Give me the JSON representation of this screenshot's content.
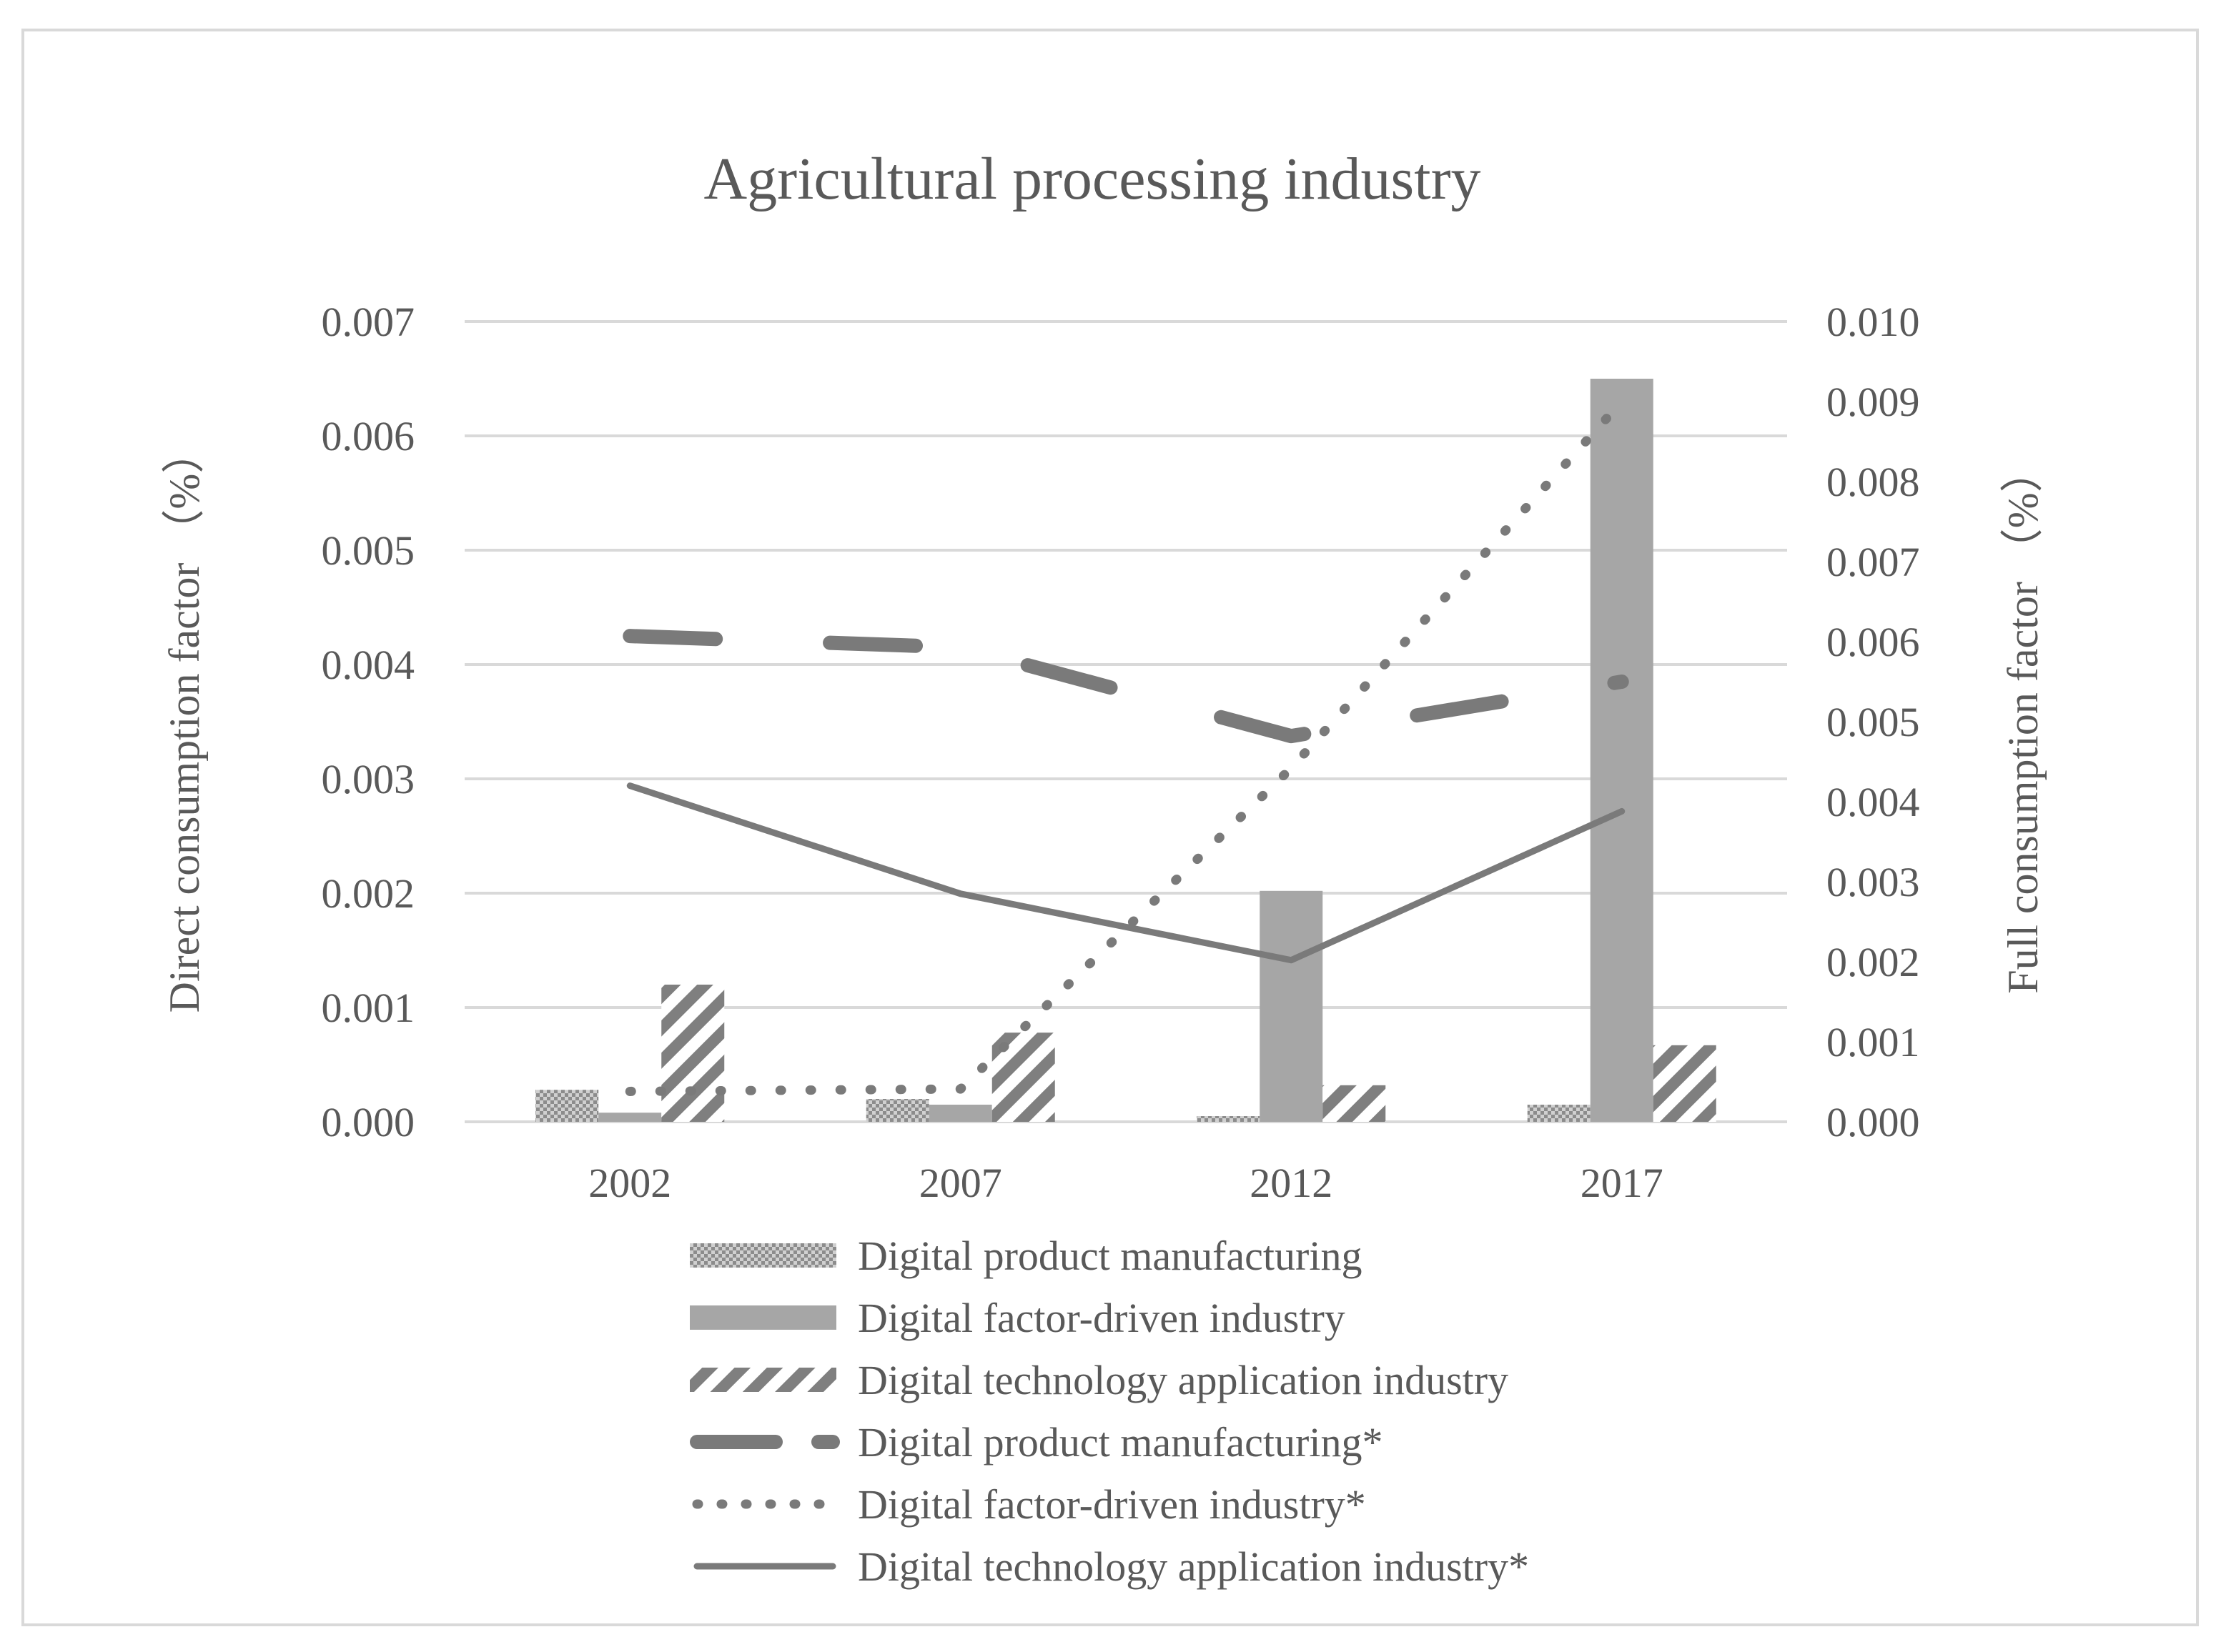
{
  "chart_data": {
    "type": "bar",
    "title": "Agricultural processing industry",
    "categories": [
      "2002",
      "2007",
      "2012",
      "2017"
    ],
    "y_left": {
      "label": "Direct consumption factor （%）",
      "ylim": [
        0,
        0.007
      ],
      "ticks": [
        "0.000",
        "0.001",
        "0.002",
        "0.003",
        "0.004",
        "0.005",
        "0.006",
        "0.007"
      ]
    },
    "y_right": {
      "label": "Full consumption factor （%）",
      "ylim": [
        0,
        0.01
      ],
      "ticks": [
        "0.000",
        "0.001",
        "0.002",
        "0.003",
        "0.004",
        "0.005",
        "0.006",
        "0.007",
        "0.008",
        "0.009",
        "0.010"
      ]
    },
    "bar_series": [
      {
        "name": "Digital product manufacturing",
        "axis": "left",
        "style": "dots",
        "values": [
          0.00028,
          0.0002,
          5e-05,
          0.00015
        ]
      },
      {
        "name": "Digital factor-driven industry",
        "axis": "left",
        "style": "solid",
        "values": [
          8e-05,
          0.00015,
          0.00202,
          0.0065
        ]
      },
      {
        "name": "Digital technology application industry",
        "axis": "left",
        "style": "diagonal",
        "values": [
          0.0012,
          0.00078,
          0.00032,
          0.00067
        ]
      }
    ],
    "line_series": [
      {
        "name": "Digital product manufacturing*",
        "axis": "right",
        "style": "dash",
        "values": [
          0.00607,
          0.00593,
          0.00482,
          0.0055
        ]
      },
      {
        "name": "Digital factor-driven industry*",
        "axis": "right",
        "style": "dot",
        "values": [
          0.00038,
          0.00041,
          0.00442,
          0.009
        ]
      },
      {
        "name": "Digital technology application industry*",
        "axis": "right",
        "style": "solid",
        "values": [
          0.0042,
          0.00285,
          0.00202,
          0.00388
        ]
      }
    ],
    "grid": true,
    "legend": "bottom"
  },
  "colors": {
    "bar_light": "#bfbfbf",
    "bar_mid": "#a6a6a6",
    "bar_pattern": "#7f7f7f",
    "line": "#7a7a7a",
    "grid": "#d9d9d9",
    "text": "#595959"
  }
}
